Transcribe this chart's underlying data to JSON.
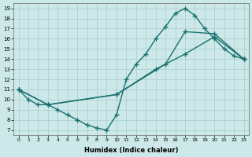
{
  "bg_color": "#cce8e8",
  "grid_color": "#a8cccc",
  "line_color": "#1a7070",
  "line_width": 1.0,
  "marker": "+",
  "marker_size": 4,
  "marker_lw": 1.0,
  "xlabel": "Humidex (Indice chaleur)",
  "xlim": [
    -0.5,
    23.5
  ],
  "ylim": [
    6.5,
    19.5
  ],
  "xticks": [
    0,
    1,
    2,
    3,
    4,
    5,
    6,
    7,
    8,
    9,
    10,
    11,
    12,
    13,
    14,
    15,
    16,
    17,
    18,
    19,
    20,
    21,
    22,
    23
  ],
  "yticks": [
    7,
    8,
    9,
    10,
    11,
    12,
    13,
    14,
    15,
    16,
    17,
    18,
    19
  ],
  "line1_x": [
    0,
    1,
    2,
    3,
    4,
    5,
    6,
    7,
    8,
    9,
    10,
    11,
    12,
    13,
    14,
    15,
    16,
    17,
    18,
    19,
    20,
    21,
    22,
    23
  ],
  "line1_y": [
    11,
    10,
    9.5,
    9.5,
    9.0,
    8.5,
    8.0,
    7.5,
    7.2,
    7.0,
    8.5,
    12.0,
    13.5,
    14.5,
    16.0,
    17.2,
    18.5,
    19.0,
    18.3,
    17.0,
    16.0,
    15.0,
    14.3,
    14.0
  ],
  "line2_x": [
    0,
    3,
    10,
    15,
    17,
    20,
    23
  ],
  "line2_y": [
    11,
    9.5,
    10.5,
    13.5,
    16.7,
    16.5,
    14.0
  ],
  "line3_x": [
    0,
    3,
    10,
    14,
    17,
    20,
    23
  ],
  "line3_y": [
    11,
    9.5,
    10.5,
    13.0,
    14.5,
    16.2,
    14.0
  ]
}
